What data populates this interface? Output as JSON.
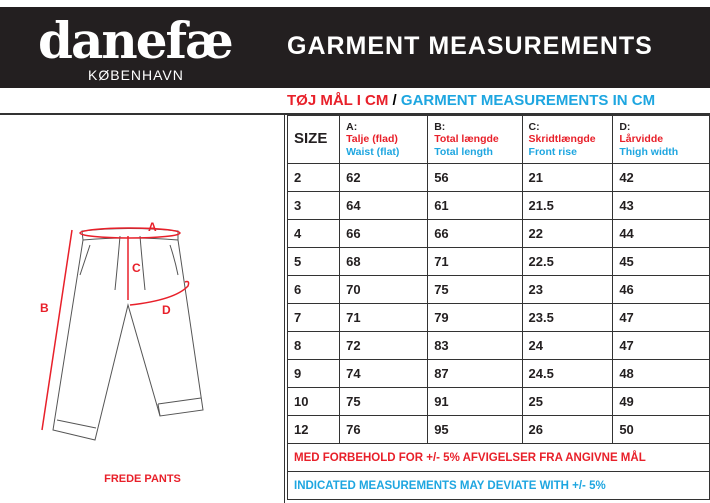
{
  "brand": {
    "logo": "danefæ",
    "city": "KØBENHAVN"
  },
  "title": "GARMENT MEASUREMENTS",
  "subtitle": {
    "danish": "TØJ MÅL I CM",
    "separator": " / ",
    "english": "GARMENT MEASUREMENTS IN CM"
  },
  "product_name": "FREDE PANTS",
  "diagram_labels": {
    "a": "A",
    "b": "B",
    "c": "C",
    "d": "D"
  },
  "colors": {
    "red": "#e8202a",
    "blue": "#1ea6e0",
    "header_bg": "#231f20"
  },
  "table": {
    "size_header": "SIZE",
    "columns": [
      {
        "letter": "A:",
        "danish": "Talje (flad)",
        "english": "Waist (flat)"
      },
      {
        "letter": "B:",
        "danish": "Total længde",
        "english": "Total length"
      },
      {
        "letter": "C:",
        "danish": "Skridtlængde",
        "english": "Front rise"
      },
      {
        "letter": "D:",
        "danish": "Lårvidde",
        "english": "Thigh width"
      }
    ],
    "rows": [
      [
        "2",
        "62",
        "56",
        "21",
        "42"
      ],
      [
        "3",
        "64",
        "61",
        "21.5",
        "43"
      ],
      [
        "4",
        "66",
        "66",
        "22",
        "44"
      ],
      [
        "5",
        "68",
        "71",
        "22.5",
        "45"
      ],
      [
        "6",
        "70",
        "75",
        "23",
        "46"
      ],
      [
        "7",
        "71",
        "79",
        "23.5",
        "47"
      ],
      [
        "8",
        "72",
        "83",
        "24",
        "47"
      ],
      [
        "9",
        "74",
        "87",
        "24.5",
        "48"
      ],
      [
        "10",
        "75",
        "91",
        "25",
        "49"
      ],
      [
        "12",
        "76",
        "95",
        "26",
        "50"
      ]
    ],
    "note_danish": "MED FORBEHOLD FOR +/- 5% AFVIGELSER FRA ANGIVNE MÅL",
    "note_english": "INDICATED MEASUREMENTS MAY DEVIATE WITH +/- 5%"
  }
}
